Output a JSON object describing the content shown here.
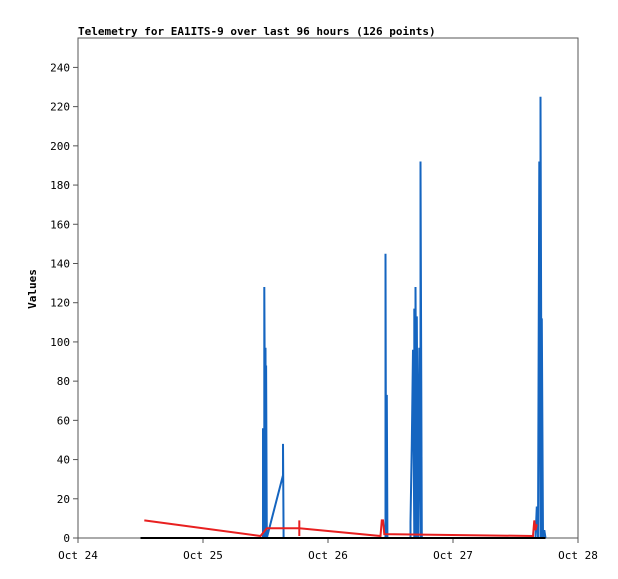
{
  "chart_data": {
    "type": "line",
    "title": "Telemetry for EA1ITS-9 over last 96 hours (126 points)",
    "ylabel": "Values",
    "xlabel": "",
    "x_ticks": [
      "Oct 24",
      "Oct 25",
      "Oct 26",
      "Oct 27",
      "Oct 28"
    ],
    "y_ticks": [
      "0",
      "20",
      "40",
      "60",
      "80",
      "100",
      "120",
      "140",
      "160",
      "180",
      "200",
      "220",
      "240"
    ],
    "xlim": [
      0,
      4
    ],
    "ylim": [
      0,
      255
    ],
    "grid": false,
    "legend": "none",
    "series": [
      {
        "color": "#1565c0",
        "points": [
          [
            0.5,
            0
          ],
          [
            1.48,
            0
          ],
          [
            1.48,
            56
          ],
          [
            1.49,
            0
          ],
          [
            1.49,
            128
          ],
          [
            1.5,
            0
          ],
          [
            1.5,
            97
          ],
          [
            1.505,
            0
          ],
          [
            1.505,
            88
          ],
          [
            1.51,
            0
          ],
          [
            1.64,
            32
          ],
          [
            1.64,
            48
          ],
          [
            1.645,
            0
          ],
          [
            2.46,
            0
          ],
          [
            2.46,
            145
          ],
          [
            2.465,
            0
          ],
          [
            2.47,
            73
          ],
          [
            2.475,
            0
          ],
          [
            2.66,
            0
          ],
          [
            2.66,
            8
          ],
          [
            2.67,
            48
          ],
          [
            2.68,
            96
          ],
          [
            2.69,
            0
          ],
          [
            2.69,
            117
          ],
          [
            2.7,
            0
          ],
          [
            2.7,
            128
          ],
          [
            2.71,
            0
          ],
          [
            2.71,
            113
          ],
          [
            2.72,
            0
          ],
          [
            2.73,
            97
          ],
          [
            2.74,
            0
          ],
          [
            2.74,
            192
          ],
          [
            2.75,
            0
          ],
          [
            3.66,
            0
          ],
          [
            3.67,
            16
          ],
          [
            3.68,
            0
          ],
          [
            3.69,
            192
          ],
          [
            3.7,
            0
          ],
          [
            3.7,
            225
          ],
          [
            3.71,
            0
          ],
          [
            3.71,
            112
          ],
          [
            3.72,
            0
          ],
          [
            3.73,
            4
          ],
          [
            3.74,
            0
          ]
        ]
      },
      {
        "color": "#e82020",
        "points": [
          [
            0.53,
            9
          ],
          [
            1.46,
            1
          ],
          [
            1.51,
            5
          ],
          [
            1.77,
            5
          ],
          [
            2.42,
            1
          ],
          [
            2.43,
            9
          ],
          [
            2.44,
            9
          ],
          [
            2.45,
            2
          ],
          [
            3.64,
            1
          ],
          [
            3.65,
            9
          ],
          [
            3.66,
            4
          ],
          [
            3.67,
            7
          ]
        ]
      },
      {
        "color": "#e82020",
        "points": [
          [
            1.77,
            1
          ],
          [
            1.77,
            9
          ]
        ]
      },
      {
        "color": "#000000",
        "points": [
          [
            0.5,
            0
          ],
          [
            3.74,
            0
          ]
        ]
      }
    ]
  }
}
